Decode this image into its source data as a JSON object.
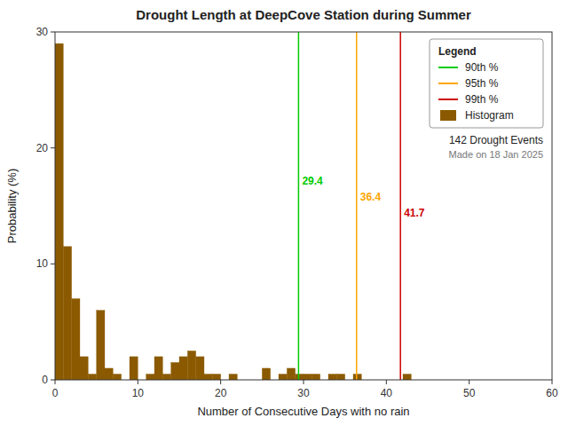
{
  "chart_data": {
    "type": "histogram",
    "title": "Drought Length at DeepCove Station during Summer",
    "x_label": "Number of Consecutive Days with no rain",
    "y_label": "Probability (%)",
    "bins": [
      0,
      1,
      2,
      3,
      4,
      5,
      6,
      7,
      8,
      9,
      10,
      11,
      12,
      13,
      14,
      15,
      16,
      17,
      18,
      19,
      20,
      21,
      22,
      23,
      24,
      25,
      26,
      27,
      28,
      29,
      30,
      31,
      32,
      33,
      34,
      35,
      36,
      37,
      38,
      39,
      40,
      41,
      42,
      43,
      44,
      45,
      46,
      47,
      48,
      49,
      50,
      51,
      52,
      53,
      54,
      55,
      56,
      57,
      58,
      59,
      60
    ],
    "series": [
      {
        "name": "Histogram",
        "color": "#8B5A00",
        "values": [
          29.0,
          11.5,
          7.0,
          2.0,
          0.5,
          6.0,
          1.0,
          0.5,
          0.0,
          2.0,
          0.0,
          0.5,
          2.0,
          0.5,
          1.5,
          2.0,
          2.5,
          2.0,
          0.5,
          0.5,
          0.0,
          0.5,
          0.0,
          0.0,
          0.0,
          1.0,
          0.0,
          0.5,
          1.0,
          0.5,
          0.5,
          0.5,
          0.0,
          0.5,
          0.5,
          0.0,
          0.5,
          0.0,
          0.0,
          0.0,
          0.0,
          0.0,
          0.5,
          0.0,
          0.0,
          0.0,
          0.0,
          0.0,
          0.0,
          0.0,
          0.0,
          0.0,
          0.0,
          0.0,
          0.0,
          0.0,
          0.0,
          0.0,
          0.0,
          0.0
        ]
      }
    ],
    "reference_lines": [
      {
        "name": "90th %",
        "value": 29.4,
        "color": "#00CC00"
      },
      {
        "name": "95th %",
        "value": 36.4,
        "color": "#FFA500"
      },
      {
        "name": "99th %",
        "value": 41.7,
        "color": "#CC0000"
      }
    ],
    "xlim": [
      0,
      60
    ],
    "ylim": [
      0,
      30
    ],
    "xticks": [
      0,
      10,
      20,
      30,
      40,
      50,
      60
    ],
    "yticks": [
      0,
      10,
      20,
      30
    ],
    "grid": false,
    "legend": "upper right",
    "legend_title": "Legend",
    "annotations": [
      "142 Drought Events",
      "Made on 18 Jan 2025"
    ]
  }
}
